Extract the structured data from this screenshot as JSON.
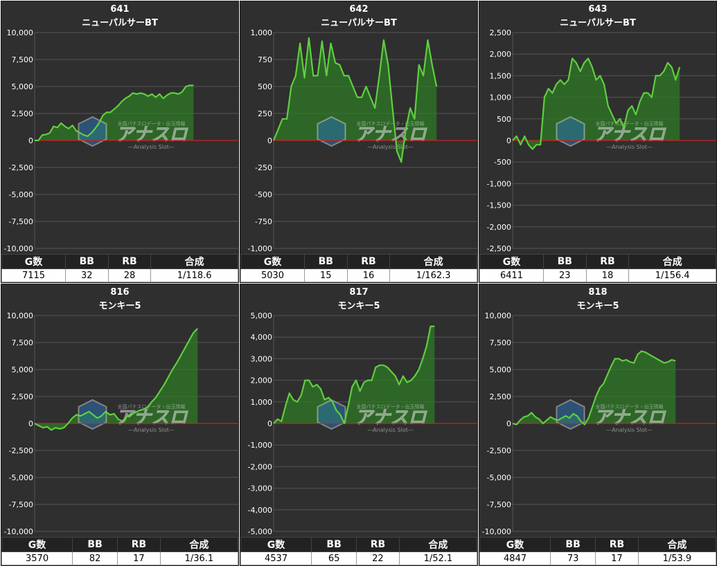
{
  "headers": {
    "games": "G数",
    "bb": "BB",
    "rb": "RB",
    "combined": "合成"
  },
  "colors": {
    "line": "#5fcf3f",
    "fill": "#2f7a27",
    "zero_line": "#cc2020",
    "grid": "#555555",
    "background": "#2f2f2f"
  },
  "watermark": {
    "title": "アナスロ",
    "top_text": "全国パチスロデータ・出玉情報",
    "sub": "—Analysis Slot—"
  },
  "panels": [
    {
      "number": "641",
      "name": "ニューパルサーBT",
      "games": "7115",
      "bb": "32",
      "rb": "28",
      "combined": "1/118.6"
    },
    {
      "number": "642",
      "name": "ニューパルサーBT",
      "games": "5030",
      "bb": "15",
      "rb": "16",
      "combined": "1/162.3"
    },
    {
      "number": "643",
      "name": "ニューパルサーBT",
      "games": "6411",
      "bb": "23",
      "rb": "18",
      "combined": "1/156.4"
    },
    {
      "number": "816",
      "name": "モンキー5",
      "games": "3570",
      "bb": "82",
      "rb": "17",
      "combined": "1/36.1"
    },
    {
      "number": "817",
      "name": "モンキー5",
      "games": "4537",
      "bb": "65",
      "rb": "22",
      "combined": "1/52.1"
    },
    {
      "number": "818",
      "name": "モンキー5",
      "games": "4847",
      "bb": "73",
      "rb": "17",
      "combined": "1/53.9"
    }
  ],
  "chart_data": [
    {
      "type": "area",
      "ylim": [
        -10000,
        10000
      ],
      "yticks": [
        -10000,
        -7500,
        -5000,
        -2500,
        0,
        2500,
        5000,
        7500,
        10000
      ],
      "tick_labels": [
        "-10,000",
        "-7,500",
        "-5,000",
        "-2,500",
        "0",
        "2,500",
        "5,000",
        "7,500",
        "10,000"
      ],
      "x_extent": 0.78,
      "values": [
        0,
        0,
        500,
        550,
        700,
        1300,
        1200,
        1600,
        1300,
        1100,
        1400,
        900,
        700,
        500,
        400,
        700,
        1100,
        1600,
        2300,
        2600,
        2600,
        2900,
        3200,
        3600,
        3900,
        4100,
        4400,
        4300,
        4400,
        4300,
        4100,
        4300,
        4000,
        4300,
        3900,
        4200,
        4400,
        4400,
        4300,
        4500,
        5000,
        5100,
        5100
      ]
    },
    {
      "type": "area",
      "ylim": [
        -1000,
        1000
      ],
      "yticks": [
        -1000,
        -750,
        -500,
        -250,
        0,
        250,
        500,
        750,
        1000
      ],
      "tick_labels": [
        "-1,000",
        "-750",
        "-500",
        "-250",
        "0",
        "250",
        "500",
        "750",
        "1,000"
      ],
      "x_extent": 0.8,
      "values": [
        0,
        100,
        200,
        200,
        500,
        600,
        900,
        580,
        950,
        600,
        600,
        920,
        600,
        900,
        720,
        700,
        600,
        600,
        500,
        400,
        400,
        500,
        400,
        300,
        600,
        930,
        700,
        300,
        -100,
        -200,
        100,
        300,
        200,
        700,
        600,
        930,
        700,
        500
      ]
    },
    {
      "type": "area",
      "ylim": [
        -2500,
        2500
      ],
      "yticks": [
        -2500,
        -2000,
        -1500,
        -1000,
        -500,
        0,
        500,
        1000,
        1500,
        2000,
        2500
      ],
      "tick_labels": [
        "-2,500",
        "-2,000",
        "-1,500",
        "-1,000",
        "-500",
        "0",
        "500",
        "1,000",
        "1,500",
        "2,000",
        "2,500"
      ],
      "x_extent": 0.82,
      "values": [
        0,
        100,
        -100,
        100,
        -100,
        -200,
        -100,
        -100,
        1000,
        1200,
        1100,
        1300,
        1400,
        1300,
        1400,
        1900,
        1800,
        1600,
        1800,
        1900,
        1700,
        1400,
        1500,
        1300,
        800,
        600,
        400,
        500,
        300,
        700,
        800,
        600,
        900,
        1100,
        1100,
        1000,
        1500,
        1500,
        1600,
        1800,
        1700,
        1400,
        1700
      ]
    },
    {
      "type": "area",
      "ylim": [
        -10000,
        10000
      ],
      "yticks": [
        -10000,
        -7500,
        -5000,
        -2500,
        0,
        2500,
        5000,
        7500,
        10000
      ],
      "tick_labels": [
        "-10,000",
        "-7,500",
        "-5,000",
        "-2,500",
        "0",
        "2,500",
        "5,000",
        "7,500",
        "10,000"
      ],
      "x_extent": 0.8,
      "values": [
        0,
        -200,
        -400,
        -300,
        -600,
        -400,
        -500,
        -400,
        0,
        500,
        800,
        700,
        900,
        1100,
        800,
        500,
        700,
        1100,
        800,
        900,
        400,
        200,
        600,
        900,
        1000,
        1200,
        1300,
        1500,
        2000,
        2400,
        3000,
        3600,
        4300,
        5000,
        5600,
        6300,
        7000,
        7700,
        8400,
        8800
      ]
    },
    {
      "type": "area",
      "ylim": [
        -5000,
        5000
      ],
      "yticks": [
        -5000,
        -4000,
        -3000,
        -2000,
        -1000,
        0,
        1000,
        2000,
        3000,
        4000,
        5000
      ],
      "tick_labels": [
        "-5,000",
        "-4,000",
        "-3,000",
        "-2,000",
        "-1,000",
        "0",
        "1,000",
        "2,000",
        "3,000",
        "4,000",
        "5,000"
      ],
      "x_extent": 0.79,
      "values": [
        0,
        200,
        100,
        800,
        1400,
        1100,
        1000,
        1300,
        2000,
        2000,
        1700,
        1800,
        1600,
        1100,
        1200,
        1000,
        600,
        400,
        0,
        800,
        1700,
        2000,
        1500,
        1900,
        2000,
        2000,
        2600,
        2700,
        2700,
        2600,
        2400,
        2200,
        1800,
        2200,
        1900,
        2000,
        2200,
        2500,
        3000,
        3600,
        4500,
        4500
      ]
    },
    {
      "type": "area",
      "ylim": [
        -10000,
        10000
      ],
      "yticks": [
        -10000,
        -7500,
        -5000,
        -2500,
        0,
        2500,
        5000,
        7500,
        10000
      ],
      "tick_labels": [
        "-10,000",
        "-7,500",
        "-5,000",
        "-2,500",
        "0",
        "2,500",
        "5,000",
        "7,500",
        "10,000"
      ],
      "x_extent": 0.8,
      "values": [
        0,
        -100,
        300,
        600,
        700,
        1000,
        600,
        400,
        0,
        300,
        600,
        400,
        300,
        500,
        700,
        500,
        900,
        700,
        200,
        -100,
        500,
        1500,
        2500,
        3300,
        3700,
        4500,
        5300,
        6000,
        6000,
        5800,
        5900,
        5700,
        5600,
        6400,
        6700,
        6600,
        6400,
        6200,
        6000,
        5800,
        5600,
        5700,
        5900,
        5800
      ]
    }
  ]
}
